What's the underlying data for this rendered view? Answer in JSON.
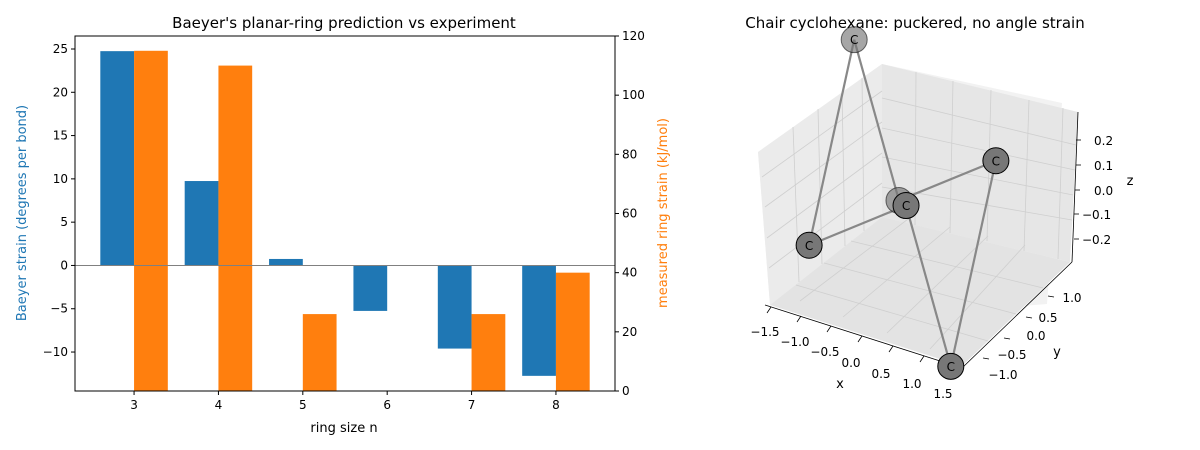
{
  "chart_data": [
    {
      "type": "bar",
      "title": "Baeyer's planar-ring prediction vs experiment",
      "xlabel": "ring size n",
      "categories": [
        "3",
        "4",
        "5",
        "6",
        "7",
        "8"
      ],
      "y_left": {
        "label": "Baeyer strain (degrees per bond)",
        "color": "#1f77b4",
        "ylim": [
          -14.5,
          26.5
        ],
        "ticks": [
          -10,
          -5,
          0,
          5,
          10,
          15,
          20,
          25
        ],
        "tick_labels": [
          "−10",
          "−5",
          "0",
          "5",
          "10",
          "15",
          "20",
          "25"
        ]
      },
      "y_right": {
        "label": "measured ring strain (kJ/mol)",
        "color": "#ff7f0e",
        "ylim": [
          0,
          120
        ],
        "ticks": [
          0,
          20,
          40,
          60,
          80,
          100,
          120
        ],
        "tick_labels": [
          "0",
          "20",
          "40",
          "60",
          "80",
          "100",
          "120"
        ]
      },
      "series": [
        {
          "axis": "left",
          "color": "#1f77b4",
          "values": [
            24.75,
            9.75,
            0.75,
            -5.25,
            -9.6,
            -12.75
          ]
        },
        {
          "axis": "right",
          "color": "#ff7f0e",
          "values": [
            115,
            110,
            26,
            0,
            26,
            40
          ]
        }
      ],
      "zero_line": true,
      "grid": false
    },
    {
      "type": "scatter3d",
      "title": "Chair cyclohexane: puckered, no angle strain",
      "xlabel": "x",
      "ylabel": "y",
      "zlabel": "z",
      "x_ticks": [
        "−1.5",
        "−1.0",
        "−0.5",
        "0.0",
        "0.5",
        "1.0",
        "1.5"
      ],
      "y_ticks": [
        "−1.0",
        "−0.5",
        "0.0",
        "0.5",
        "1.0"
      ],
      "z_ticks": [
        "−0.2",
        "−0.1",
        "0.0",
        "0.1",
        "0.2"
      ],
      "atom_label": "C",
      "atom_color": "#777777",
      "bond_color": "#888888",
      "atoms": [
        {
          "label": "C",
          "x": 1.25,
          "y": 0.0,
          "z": 0.25
        },
        {
          "label": "C",
          "x": 0.62,
          "y": 1.08,
          "z": -0.25
        },
        {
          "label": "C",
          "x": -0.62,
          "y": 1.08,
          "z": 0.25
        },
        {
          "label": "C",
          "x": -1.25,
          "y": 0.0,
          "z": -0.25
        },
        {
          "label": "C",
          "x": -0.62,
          "y": -1.08,
          "z": 0.25
        },
        {
          "label": "C",
          "x": 0.62,
          "y": -1.08,
          "z": -0.25
        }
      ],
      "bonds": [
        [
          0,
          1
        ],
        [
          1,
          2
        ],
        [
          2,
          3
        ],
        [
          3,
          4
        ],
        [
          4,
          5
        ],
        [
          5,
          0
        ]
      ],
      "grid": true
    }
  ]
}
